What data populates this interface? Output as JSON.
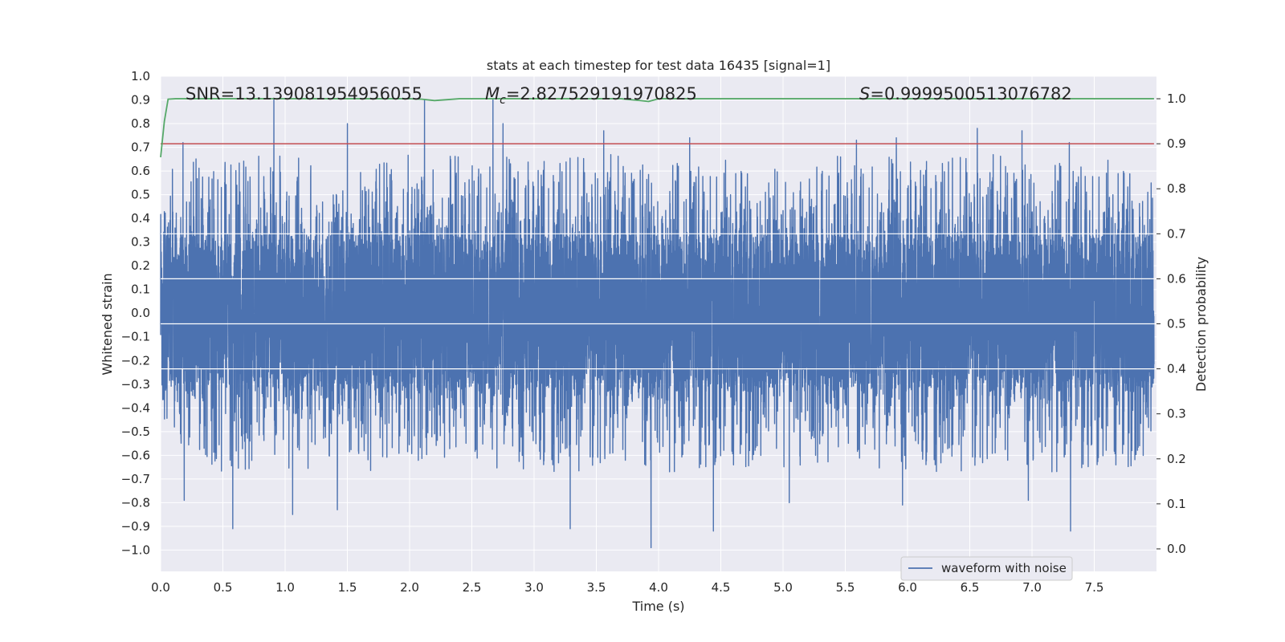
{
  "chart_data": {
    "type": "line",
    "title": "stats at each timestep for test data 16435 [signal=1]",
    "xlabel": "Time (s)",
    "ylabel": "Whitened strain",
    "y2label": "Detection probability",
    "xlim": [
      0.0,
      8.0
    ],
    "ylim": [
      -1.09,
      1.0
    ],
    "y2lim": [
      -0.05,
      1.05
    ],
    "xticks": [
      "0.0",
      "0.5",
      "1.0",
      "1.5",
      "2.0",
      "2.5",
      "3.0",
      "3.5",
      "4.0",
      "4.5",
      "5.0",
      "5.5",
      "6.0",
      "6.5",
      "7.0",
      "7.5"
    ],
    "yticks": [
      "1.0",
      "0.9",
      "0.8",
      "0.7",
      "0.6",
      "0.5",
      "0.4",
      "0.3",
      "0.2",
      "0.1",
      "0.0",
      "−0.1",
      "−0.2",
      "−0.3",
      "−0.4",
      "−0.5",
      "−0.6",
      "−0.7",
      "−0.8",
      "−0.9",
      "−1.0"
    ],
    "y2ticks": [
      "1.0",
      "0.9",
      "0.8",
      "0.7",
      "0.6",
      "0.5",
      "0.4",
      "0.3",
      "0.2",
      "0.1",
      "0.0"
    ],
    "annotations": {
      "snr": "SNR=13.139081954956055",
      "mc_symbol": "M",
      "mc_subscript": "c",
      "mc_value": "=2.827529191970825",
      "s_symbol": "S",
      "s_value": "=0.9999500513076782"
    },
    "legend": {
      "label": "waveform with noise",
      "loc": "lower right"
    },
    "series": [
      {
        "name": "waveform with noise",
        "color": "#4c72b0",
        "axis": "left",
        "sample_count": 8000,
        "core_amplitude": 0.33,
        "spikes": [
          {
            "t": 0.18,
            "v": 0.72
          },
          {
            "t": 0.91,
            "v": 0.9
          },
          {
            "t": 1.5,
            "v": 0.8
          },
          {
            "t": 2.12,
            "v": 0.9
          },
          {
            "t": 2.67,
            "v": 0.9
          },
          {
            "t": 2.75,
            "v": 0.8
          },
          {
            "t": 3.56,
            "v": 0.77
          },
          {
            "t": 4.25,
            "v": 0.74
          },
          {
            "t": 5.59,
            "v": 0.73
          },
          {
            "t": 5.91,
            "v": 0.74
          },
          {
            "t": 6.56,
            "v": 0.78
          },
          {
            "t": 6.92,
            "v": 0.77
          },
          {
            "t": 7.3,
            "v": 0.72
          },
          {
            "t": 0.19,
            "v": -0.79
          },
          {
            "t": 0.58,
            "v": -0.91
          },
          {
            "t": 1.06,
            "v": -0.85
          },
          {
            "t": 1.42,
            "v": -0.83
          },
          {
            "t": 3.29,
            "v": -0.91
          },
          {
            "t": 3.94,
            "v": -0.99
          },
          {
            "t": 4.44,
            "v": -0.92
          },
          {
            "t": 5.05,
            "v": -0.8
          },
          {
            "t": 5.96,
            "v": -0.81
          },
          {
            "t": 6.97,
            "v": -0.79
          },
          {
            "t": 7.31,
            "v": -0.92
          }
        ]
      },
      {
        "name": "detection probability",
        "color": "#55a868",
        "axis": "right",
        "x": [
          0.0,
          0.03,
          0.06,
          0.12,
          0.5,
          1.0,
          2.0,
          2.1,
          2.2,
          2.4,
          3.0,
          3.7,
          3.85,
          3.92,
          4.0,
          5.0,
          6.0,
          7.0,
          7.98
        ],
        "y": [
          0.87,
          0.95,
          0.999,
          1.0,
          1.0,
          1.0,
          1.0,
          0.999,
          0.996,
          1.0,
          1.0,
          1.0,
          0.996,
          0.994,
          1.0,
          1.0,
          1.0,
          1.0,
          1.0
        ]
      },
      {
        "name": "threshold",
        "color": "#c44e52",
        "axis": "right",
        "x": [
          0.0,
          8.0
        ],
        "y": [
          0.9,
          0.9
        ]
      }
    ]
  }
}
